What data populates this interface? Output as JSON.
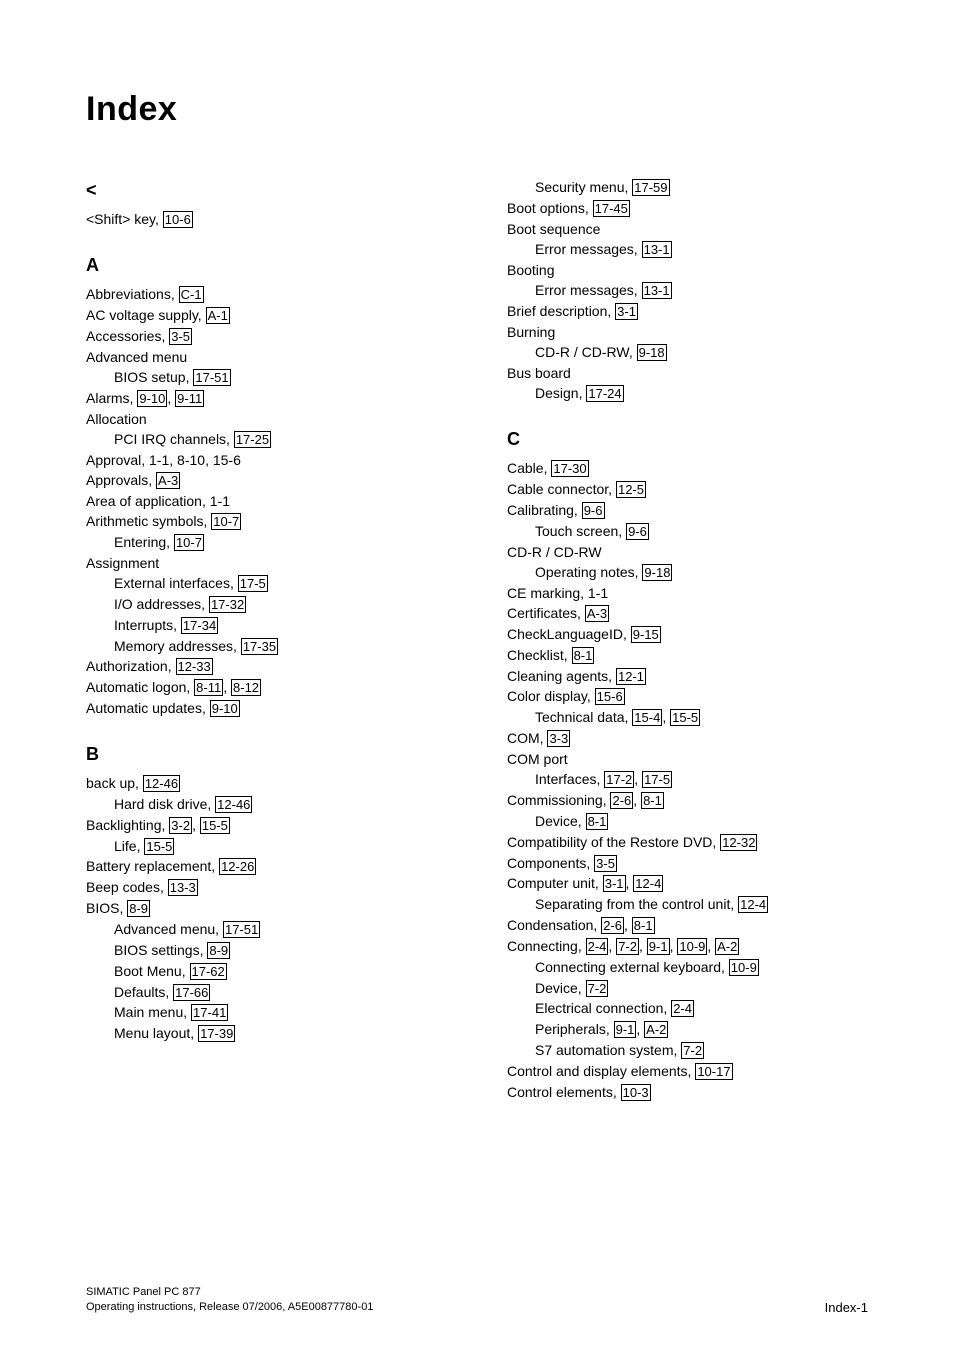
{
  "title": "Index",
  "footer": {
    "line1": "SIMATIC Panel PC 877",
    "line2": "Operating instructions, Release 07/2006, A5E00877780-01",
    "page": "Index-1"
  },
  "left": {
    "sec_lt": {
      "head": "<",
      "shift_key": {
        "label": "<Shift> key, ",
        "page": "10-6"
      }
    },
    "sec_a": {
      "head": "A",
      "abbrev": {
        "label": "Abbreviations, ",
        "page": "C-1"
      },
      "ac": {
        "label": "AC voltage supply, ",
        "page": "A-1"
      },
      "access": {
        "label": "Accessories, ",
        "page": "3-5"
      },
      "adv_menu": {
        "label": "Advanced menu"
      },
      "adv_bios": {
        "label": "BIOS setup, ",
        "page": "17-51"
      },
      "alarms": {
        "label": "Alarms, ",
        "page1": "9-10",
        "sep": ", ",
        "page2": "9-11"
      },
      "alloc": {
        "label": "Allocation"
      },
      "alloc_pci": {
        "label": "PCI IRQ channels, ",
        "page": "17-25"
      },
      "approval": {
        "label": "Approval, 1-1, 8-10, 15-6"
      },
      "approvals": {
        "label": "Approvals, ",
        "page": "A-3"
      },
      "area": {
        "label": "Area of application, 1-1"
      },
      "arith": {
        "label": "Arithmetic symbols, ",
        "page": "10-7"
      },
      "arith_ent": {
        "label": "Entering, ",
        "page": "10-7"
      },
      "assign": {
        "label": "Assignment"
      },
      "assign_ext": {
        "label": "External interfaces, ",
        "page": "17-5"
      },
      "assign_io": {
        "label": "I/O addresses, ",
        "page": "17-32"
      },
      "assign_int": {
        "label": "Interrupts, ",
        "page": "17-34"
      },
      "assign_mem": {
        "label": "Memory addresses, ",
        "page": "17-35"
      },
      "auth": {
        "label": "Authorization, ",
        "page": "12-33"
      },
      "autolog": {
        "label": "Automatic logon, ",
        "page1": "8-11",
        "sep": ", ",
        "page2": "8-12"
      },
      "autoupd": {
        "label": "Automatic updates, ",
        "page": "9-10"
      }
    },
    "sec_b": {
      "head": "B",
      "backup": {
        "label": "back up, ",
        "page": "12-46"
      },
      "backup_hd": {
        "label": "Hard disk drive, ",
        "page": "12-46"
      },
      "backlight": {
        "label": "Backlighting, ",
        "page1": "3-2",
        "sep": ", ",
        "page2": "15-5"
      },
      "life": {
        "label": "Life, ",
        "page": "15-5"
      },
      "batt": {
        "label": "Battery replacement, ",
        "page": "12-26"
      },
      "beep": {
        "label": "Beep codes, ",
        "page": "13-3"
      },
      "bios": {
        "label": "BIOS, ",
        "page": "8-9"
      },
      "bios_adv": {
        "label": "Advanced menu, ",
        "page": "17-51"
      },
      "bios_set": {
        "label": "BIOS settings, ",
        "page": "8-9"
      },
      "bios_boot": {
        "label": "Boot Menu, ",
        "page": "17-62"
      },
      "bios_def": {
        "label": "Defaults, ",
        "page": "17-66"
      },
      "bios_main": {
        "label": "Main menu, ",
        "page": "17-41"
      },
      "bios_menu": {
        "label": "Menu layout, ",
        "page": "17-39"
      }
    }
  },
  "right": {
    "sec_b2": {
      "sec_menu": {
        "label": "Security menu, ",
        "page": "17-59"
      },
      "bootopt": {
        "label": "Boot options, ",
        "page": "17-45"
      },
      "bootseq": {
        "label": "Boot sequence"
      },
      "bootseq_err": {
        "label": "Error messages, ",
        "page": "13-1"
      },
      "booting": {
        "label": "Booting"
      },
      "booting_err": {
        "label": "Error messages, ",
        "page": "13-1"
      },
      "brief": {
        "label": "Brief description, ",
        "page": "3-1"
      },
      "burning": {
        "label": "Burning"
      },
      "burn_cd": {
        "label": "CD-R / CD-RW, ",
        "page": "9-18"
      },
      "busboard": {
        "label": "Bus board"
      },
      "bus_des": {
        "label": "Design, ",
        "page": "17-24"
      }
    },
    "sec_c": {
      "head": "C",
      "cable": {
        "label": "Cable, ",
        "page": "17-30"
      },
      "cablecon": {
        "label": "Cable connector, ",
        "page": "12-5"
      },
      "calib": {
        "label": "Calibrating, ",
        "page": "9-6"
      },
      "calib_ts": {
        "label": "Touch screen, ",
        "page": "9-6"
      },
      "cdrw": {
        "label": "CD-R / CD-RW"
      },
      "cdrw_op": {
        "label": "Operating notes, ",
        "page": "9-18"
      },
      "cemark": {
        "label": "CE marking, 1-1"
      },
      "certs": {
        "label": "Certificates, ",
        "page": "A-3"
      },
      "checklang": {
        "label": "CheckLanguageID, ",
        "page": "9-15"
      },
      "checklist": {
        "label": "Checklist, ",
        "page": "8-1"
      },
      "cleaning": {
        "label": "Cleaning agents, ",
        "page": "12-1"
      },
      "colordisp": {
        "label": "Color display, ",
        "page": "15-6"
      },
      "colordisp_td": {
        "label": "Technical data, ",
        "page1": "15-4",
        "sep": ", ",
        "page2": "15-5"
      },
      "com": {
        "label": "COM, ",
        "page": "3-3"
      },
      "comport": {
        "label": "COM port"
      },
      "comport_if": {
        "label": "Interfaces, ",
        "page1": "17-2",
        "sep": ", ",
        "page2": "17-5"
      },
      "commiss": {
        "label": "Commissioning, ",
        "page1": "2-6",
        "sep": ", ",
        "page2": "8-1"
      },
      "commiss_dev": {
        "label": "Device, ",
        "page": "8-1"
      },
      "compat": {
        "label": "Compatibility of the Restore DVD, ",
        "page": "12-32"
      },
      "components": {
        "label": "Components, ",
        "page": "3-5"
      },
      "compunit": {
        "label": "Computer unit, ",
        "page1": "3-1",
        "sep": ", ",
        "page2": "12-4"
      },
      "compunit_sep": {
        "label": "Separating from the control unit, ",
        "page": "12-4"
      },
      "condens": {
        "label": "Condensation, ",
        "page1": "2-6",
        "sep": ", ",
        "page2": "8-1"
      },
      "connect": {
        "label": "Connecting, ",
        "p1": "2-4",
        "c1": ", ",
        "p2": "7-2",
        "c2": ", ",
        "p3": "9-1",
        "c3": ", ",
        "p4": "10-9",
        "c4": ", ",
        "p5": "A-2"
      },
      "connect_kb": {
        "label": "Connecting external keyboard, ",
        "page": "10-9"
      },
      "connect_dev": {
        "label": "Device, ",
        "page": "7-2"
      },
      "connect_el": {
        "label": "Electrical connection, ",
        "page": "2-4"
      },
      "connect_per": {
        "label": "Peripherals, ",
        "page1": "9-1",
        "sep": ", ",
        "page2": "A-2"
      },
      "connect_s7": {
        "label": "S7 automation system, ",
        "page": "7-2"
      },
      "ctrldisp": {
        "label": "Control and display elements, ",
        "page": "10-17"
      },
      "ctrlelem": {
        "label": "Control elements, ",
        "page": "10-3"
      }
    }
  }
}
